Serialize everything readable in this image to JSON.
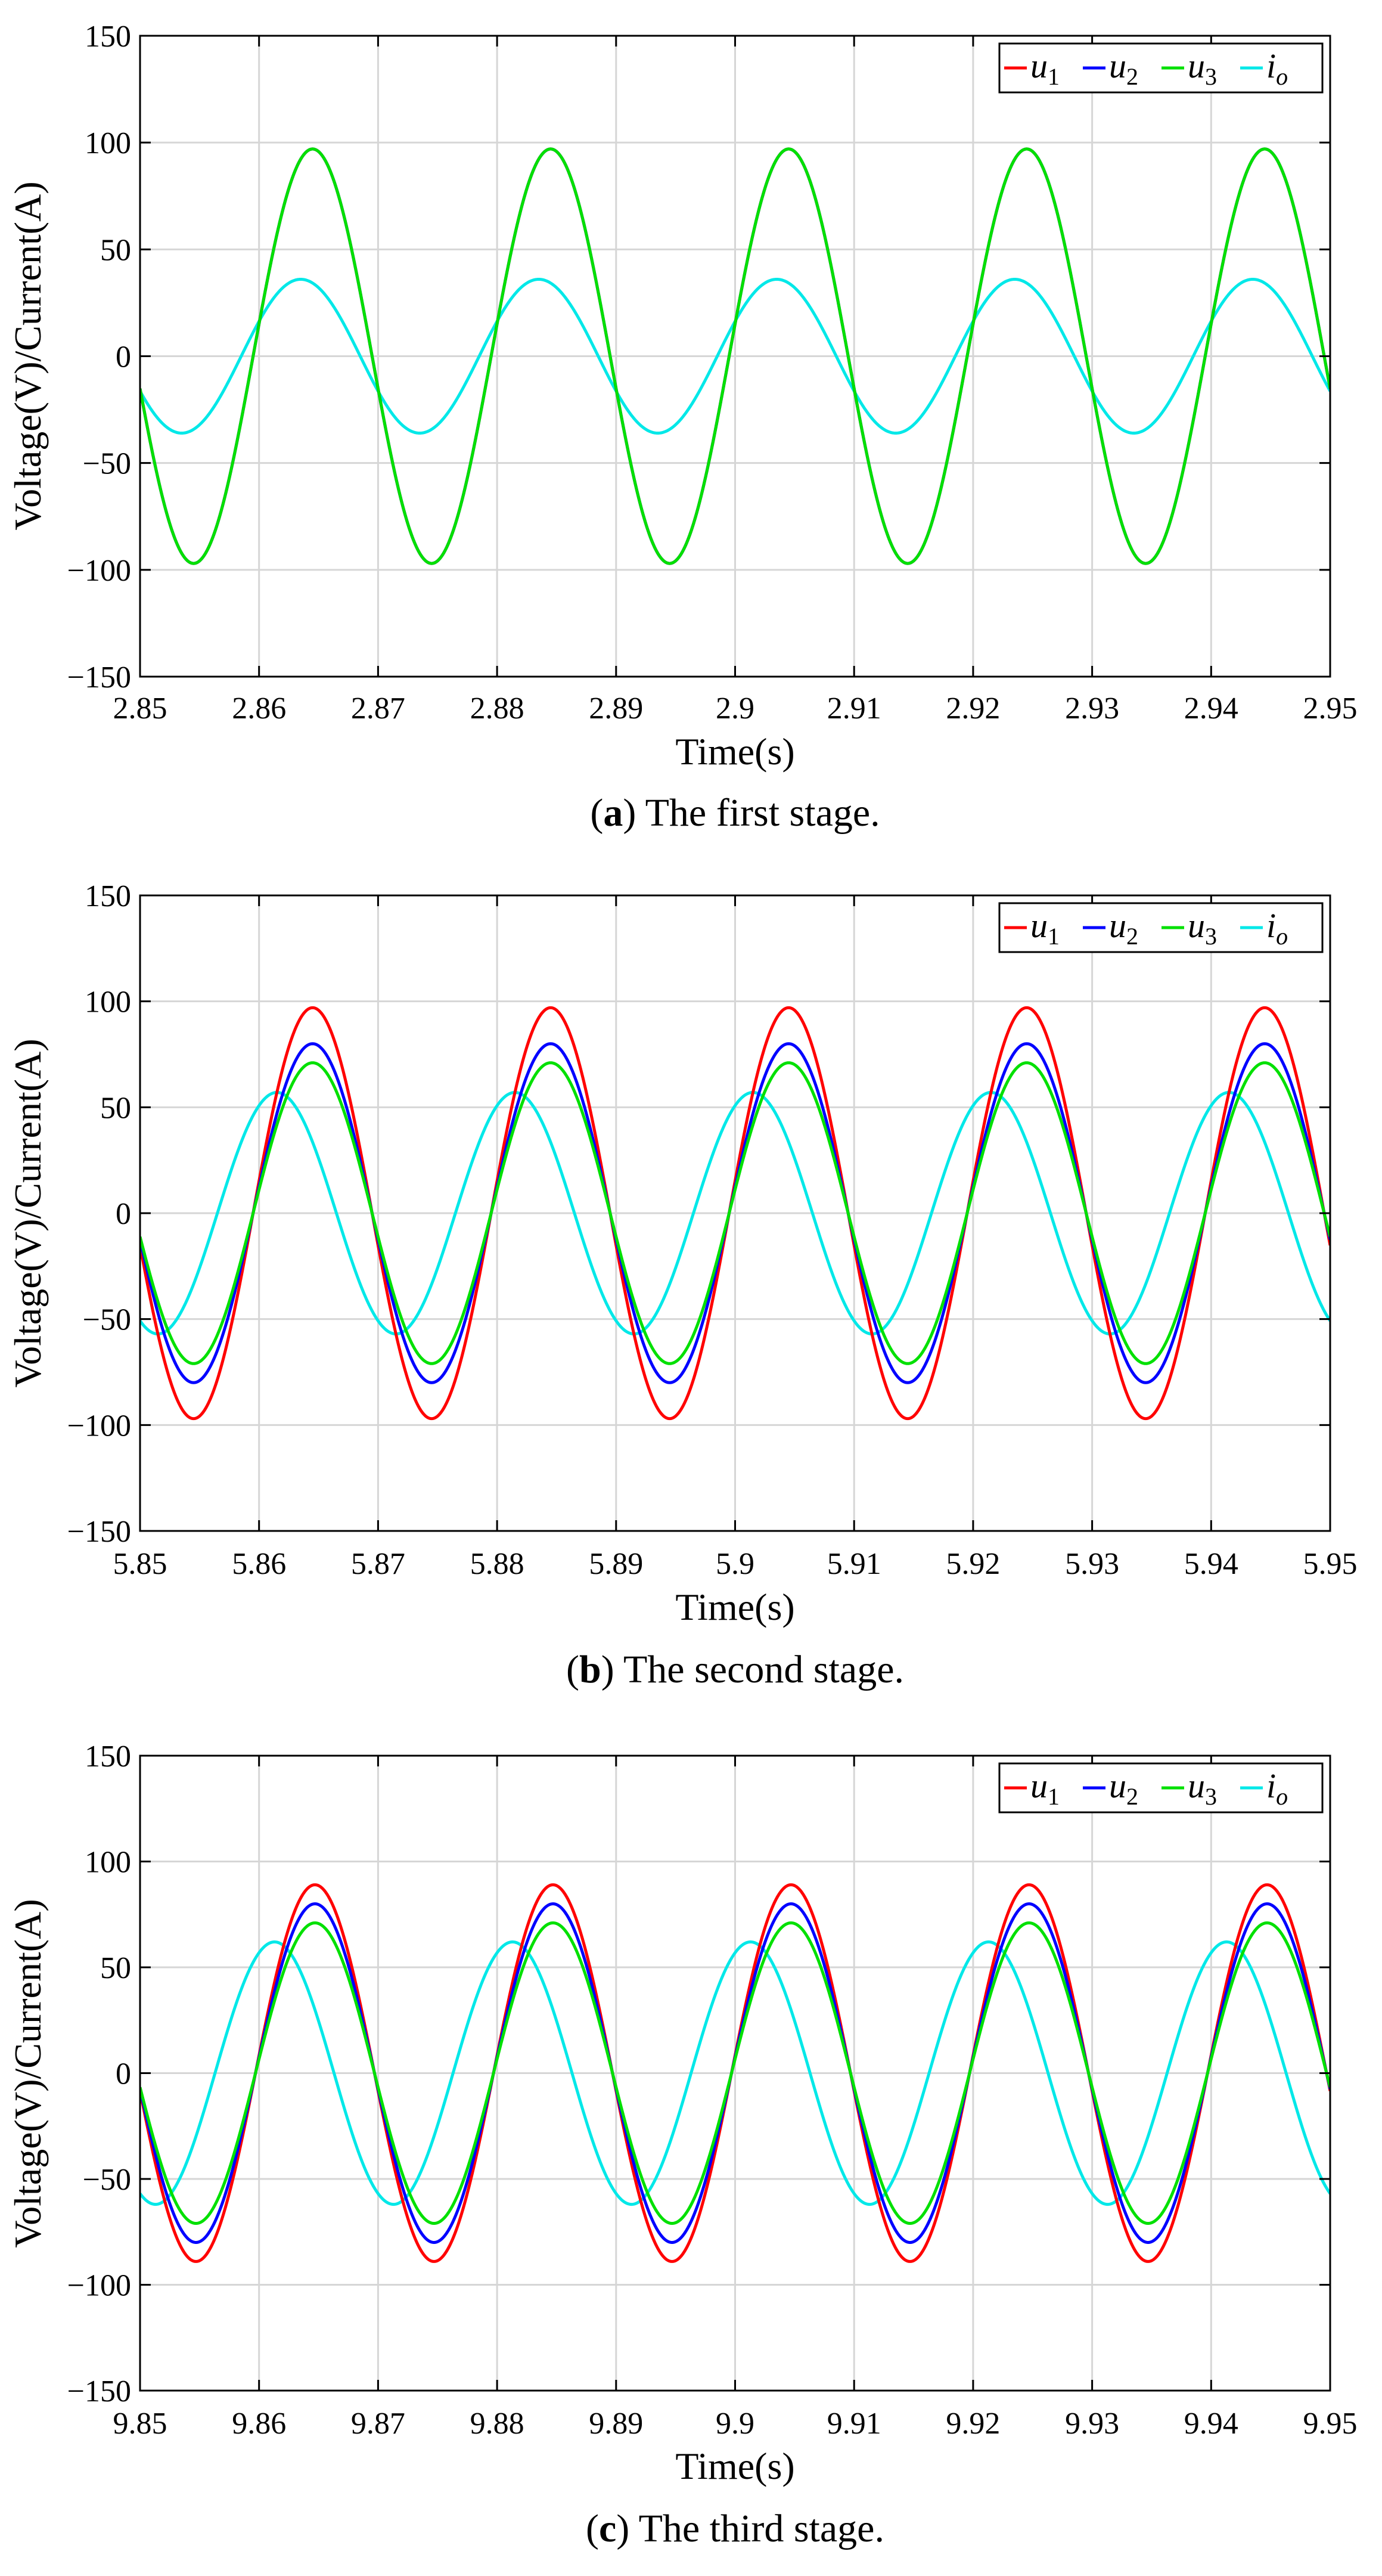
{
  "figure": {
    "panels": [
      {
        "caption": {
          "label": "a",
          "text": " The first stage.",
          "open": "(",
          "close": ")"
        },
        "xticks": [
          "2.85",
          "2.86",
          "2.87",
          "2.88",
          "2.89",
          "2.9",
          "2.91",
          "2.92",
          "2.93",
          "2.94",
          "2.95"
        ]
      },
      {
        "caption": {
          "label": "b",
          "text": " The second stage.",
          "open": "(",
          "close": ")"
        },
        "xticks": [
          "5.85",
          "5.86",
          "5.87",
          "5.88",
          "5.89",
          "5.9",
          "5.91",
          "5.92",
          "5.93",
          "5.94",
          "5.95"
        ]
      },
      {
        "caption": {
          "label": "c",
          "text": " The third stage.",
          "open": "(",
          "close": ")"
        },
        "xticks": [
          "9.85",
          "9.86",
          "9.87",
          "9.88",
          "9.89",
          "9.9",
          "9.91",
          "9.92",
          "9.93",
          "9.94",
          "9.95"
        ]
      }
    ],
    "yticks": [
      "150",
      "100",
      "50",
      "0",
      "−50",
      "−100",
      "−150"
    ]
  },
  "chart_data": [
    {
      "type": "line",
      "title": "(a) The first stage.",
      "xlabel": "Time(s)",
      "ylabel": "Voltage(V)/Current(A)",
      "xlim": [
        2.85,
        2.95
      ],
      "ylim": [
        -150,
        150
      ],
      "grid": true,
      "legend_position": "top-right",
      "frequency_hz": 50,
      "series": [
        {
          "name": "u1",
          "base": "u",
          "sub": "1",
          "color": "#ff0000",
          "amplitude": 97,
          "peak_time": 2.8645
        },
        {
          "name": "u2",
          "base": "u",
          "sub": "2",
          "color": "#0000ff",
          "amplitude": 97,
          "peak_time": 2.8645
        },
        {
          "name": "u3",
          "base": "u",
          "sub": "3",
          "color": "#00e000",
          "amplitude": 97,
          "peak_time": 2.8645
        },
        {
          "name": "io",
          "base": "i",
          "sub": "o",
          "color": "#00e8e8",
          "amplitude": 36,
          "peak_time": 2.8635
        }
      ]
    },
    {
      "type": "line",
      "title": "(b) The second stage.",
      "xlabel": "Time(s)",
      "ylabel": "Voltage(V)/Current(A)",
      "xlim": [
        5.85,
        5.95
      ],
      "ylim": [
        -150,
        150
      ],
      "grid": true,
      "legend_position": "top-right",
      "frequency_hz": 50,
      "series": [
        {
          "name": "u1",
          "base": "u",
          "sub": "1",
          "color": "#ff0000",
          "amplitude": 97,
          "peak_time": 5.8645
        },
        {
          "name": "u2",
          "base": "u",
          "sub": "2",
          "color": "#0000ff",
          "amplitude": 80,
          "peak_time": 5.8645
        },
        {
          "name": "u3",
          "base": "u",
          "sub": "3",
          "color": "#00e000",
          "amplitude": 71,
          "peak_time": 5.8645
        },
        {
          "name": "io",
          "base": "i",
          "sub": "o",
          "color": "#00e8e8",
          "amplitude": 57,
          "peak_time": 5.8615
        }
      ]
    },
    {
      "type": "line",
      "title": "(c) The third stage.",
      "xlabel": "Time(s)",
      "ylabel": "Voltage(V)/Current(A)",
      "xlim": [
        9.85,
        9.95
      ],
      "ylim": [
        -150,
        150
      ],
      "grid": true,
      "legend_position": "top-right",
      "frequency_hz": 50,
      "series": [
        {
          "name": "u1",
          "base": "u",
          "sub": "1",
          "color": "#ff0000",
          "amplitude": 89,
          "peak_time": 9.8647
        },
        {
          "name": "u2",
          "base": "u",
          "sub": "2",
          "color": "#0000ff",
          "amplitude": 80,
          "peak_time": 9.8647
        },
        {
          "name": "u3",
          "base": "u",
          "sub": "3",
          "color": "#00e000",
          "amplitude": 71,
          "peak_time": 9.8647
        },
        {
          "name": "io",
          "base": "i",
          "sub": "o",
          "color": "#00e8e8",
          "amplitude": 62,
          "peak_time": 9.8613
        }
      ]
    }
  ]
}
